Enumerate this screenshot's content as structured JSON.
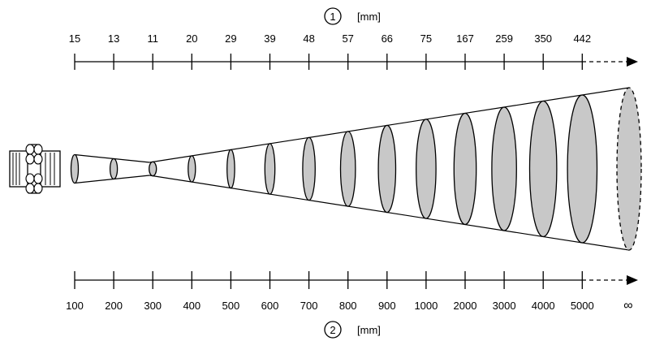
{
  "scale_top": {
    "marker": "1",
    "unit": "[mm]",
    "labels": [
      "15",
      "13",
      "11",
      "20",
      "29",
      "39",
      "48",
      "57",
      "66",
      "75",
      "167",
      "259",
      "350",
      "442"
    ]
  },
  "scale_bottom": {
    "marker": "2",
    "unit": "[mm]",
    "labels": [
      "100",
      "200",
      "300",
      "400",
      "500",
      "600",
      "700",
      "800",
      "900",
      "1000",
      "2000",
      "3000",
      "4000",
      "5000"
    ],
    "end_label": "∞"
  },
  "colors": {
    "line": "#000000",
    "spot_fill": "#c8c8c8"
  },
  "icons": [
    "sensor-icon"
  ]
}
